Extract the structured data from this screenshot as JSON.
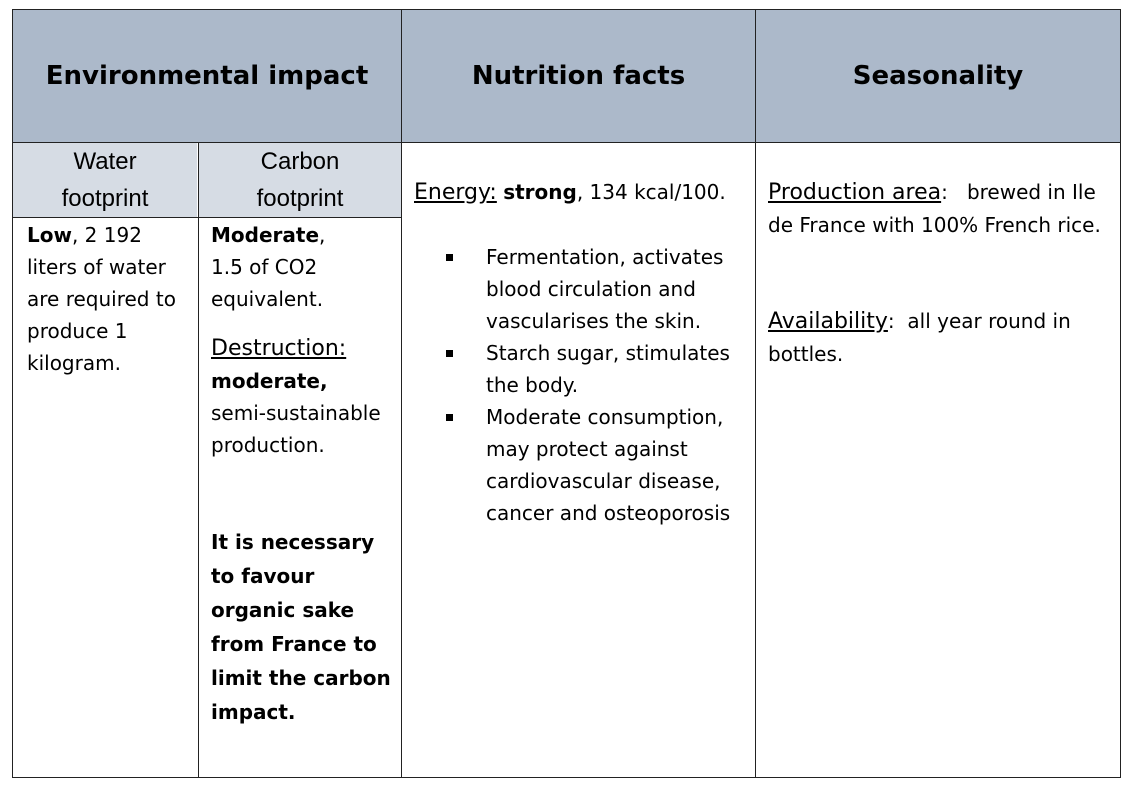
{
  "headers": {
    "environmental": "Environmental impact",
    "nutrition": "Nutrition facts",
    "seasonality": "Seasonality"
  },
  "subheaders": {
    "water_line1": "Water",
    "water_line2": "footprint",
    "carbon_line1": "Carbon",
    "carbon_line2": "footprint"
  },
  "water": {
    "bold": "Low",
    "text": ", 2 192 liters of water are required to produce 1 kilogram."
  },
  "carbon": {
    "bold": "Moderate",
    "comma": ",",
    "text": "1.5 of CO2 equivalent.",
    "destruction_label": "Destruction:",
    "destruction_bold": "moderate,",
    "destruction_text": "semi-sustainable production.",
    "note": "It is necessary to favour organic sake from France to limit the carbon impact."
  },
  "nutrition": {
    "energy_label": "Energy:",
    "energy_bold": "strong",
    "energy_text": ", 134 kcal/100.",
    "bullets": [
      "Fermentation, activates blood circulation and vascularises the skin.",
      "Starch sugar, stimulates the body.",
      "Moderate consumption, may protect against cardiovascular disease, cancer and osteoporosis"
    ]
  },
  "seasonality": {
    "production_label": "Production area",
    "production_colon": ":",
    "production_text": "brewed in Ile de France with 100% French rice.",
    "availability_label": "Availability",
    "availability_colon": ":",
    "availability_text": "all year round in bottles."
  }
}
